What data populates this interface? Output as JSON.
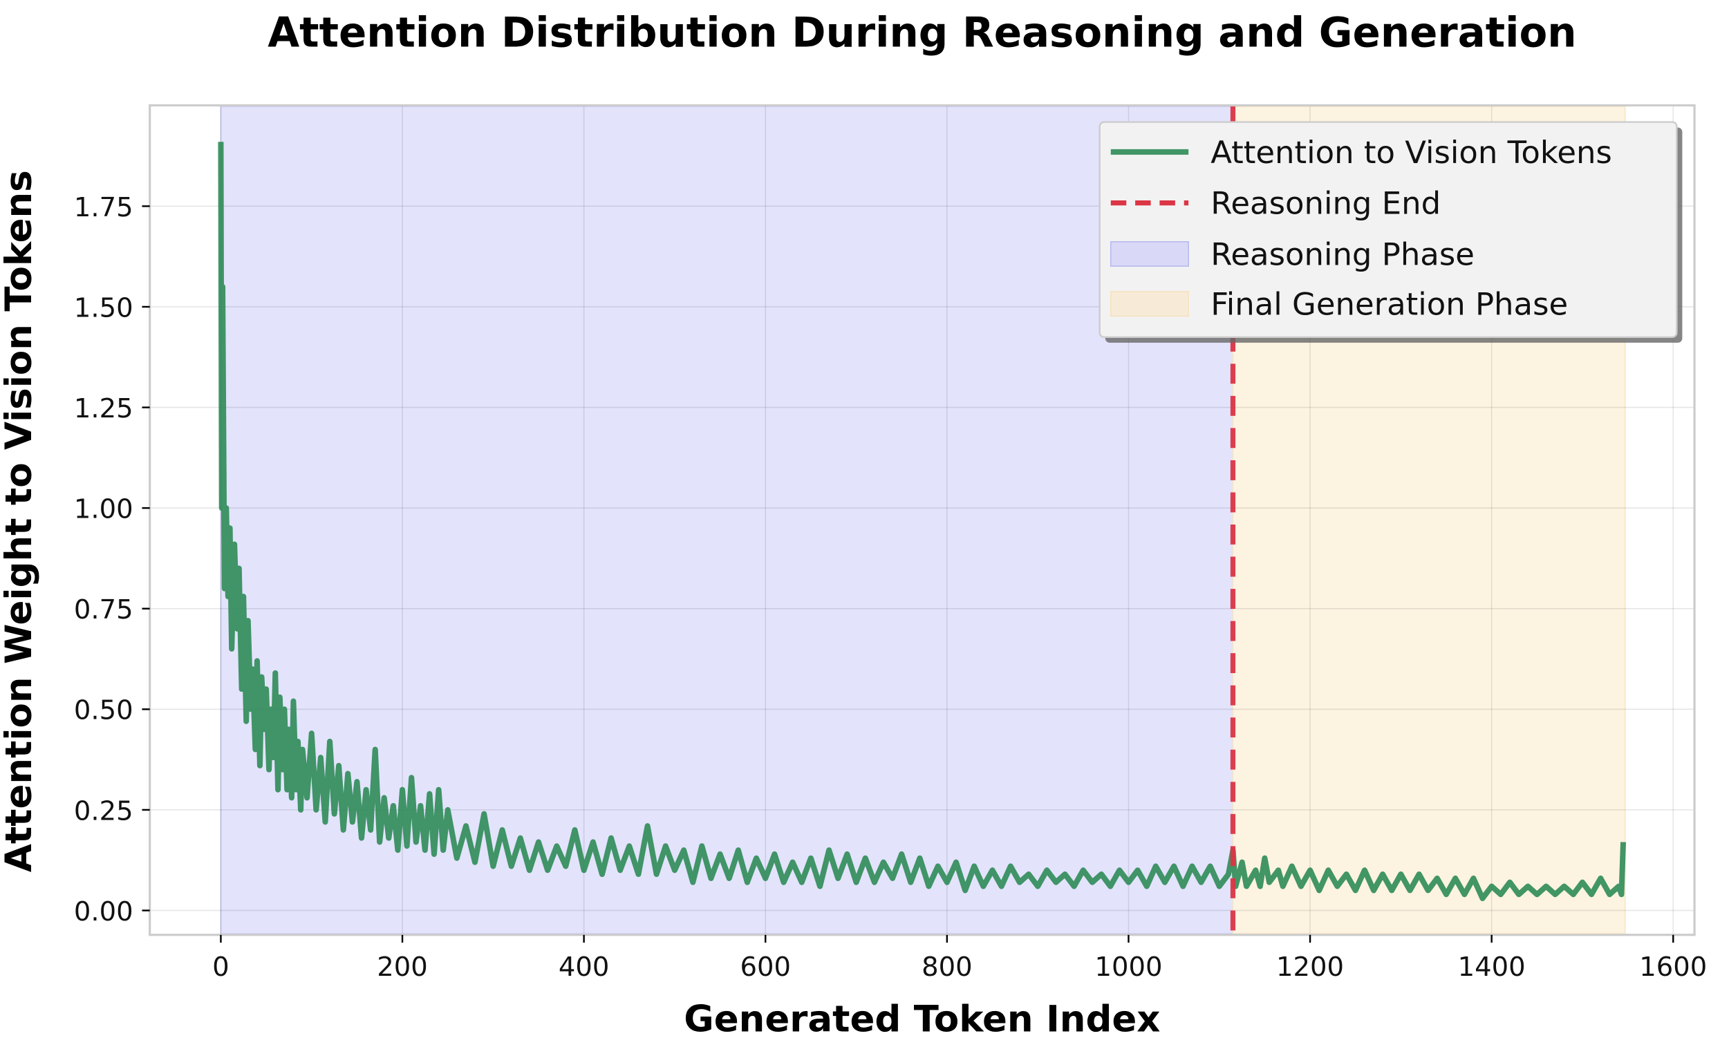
{
  "chart_data": {
    "type": "line",
    "title": "Attention Distribution During Reasoning and Generation",
    "xlabel": "Generated Token Index",
    "ylabel": "Attention Weight to Vision Tokens",
    "xlim": [
      -100,
      1620
    ],
    "ylim": [
      -0.06,
      2.0
    ],
    "xticks": [
      0,
      200,
      400,
      600,
      800,
      1000,
      1200,
      1400,
      1600
    ],
    "xtick_labels": [
      "0",
      "200",
      "400",
      "600",
      "800",
      "1000",
      "1200",
      "1400",
      "1600"
    ],
    "yticks": [
      0,
      0.25,
      0.5,
      0.75,
      1.0,
      1.25,
      1.5,
      1.75
    ],
    "ytick_labels": [
      "0.00",
      "0.25",
      "0.50",
      "0.75",
      "1.00",
      "1.25",
      "1.50",
      "1.75"
    ],
    "grid": true,
    "legend_position": "top-right",
    "legend": [
      "Attention to Vision Tokens",
      "Reasoning End",
      "Reasoning Phase",
      "Final Generation Phase"
    ],
    "colors": {
      "line": "#2e8b57",
      "reasoning_end": "#dc3545",
      "reasoning_phase": "#e3e3fc",
      "final_phase": "#fdf3e1"
    },
    "reasoning_end": 1115,
    "regions": [
      {
        "name": "Reasoning Phase",
        "start": 0,
        "end": 1115
      },
      {
        "name": "Final Generation Phase",
        "start": 1115,
        "end": 1547
      }
    ],
    "series": [
      {
        "name": "Attention to Vision Tokens",
        "x": [
          0,
          1,
          2,
          4,
          6,
          8,
          10,
          12,
          15,
          18,
          20,
          23,
          25,
          28,
          30,
          33,
          35,
          38,
          40,
          43,
          45,
          48,
          50,
          53,
          55,
          58,
          60,
          63,
          65,
          68,
          70,
          73,
          75,
          78,
          80,
          83,
          85,
          88,
          90,
          95,
          100,
          105,
          110,
          115,
          120,
          125,
          130,
          135,
          140,
          145,
          150,
          155,
          160,
          165,
          170,
          175,
          180,
          185,
          190,
          195,
          200,
          205,
          210,
          215,
          220,
          225,
          230,
          235,
          240,
          245,
          250,
          260,
          270,
          280,
          290,
          300,
          310,
          320,
          330,
          340,
          350,
          360,
          370,
          380,
          390,
          400,
          410,
          420,
          430,
          440,
          450,
          460,
          470,
          480,
          490,
          500,
          510,
          520,
          530,
          540,
          550,
          560,
          570,
          580,
          590,
          600,
          610,
          620,
          630,
          640,
          650,
          660,
          670,
          680,
          690,
          700,
          710,
          720,
          730,
          740,
          750,
          760,
          770,
          780,
          790,
          800,
          810,
          820,
          830,
          840,
          850,
          860,
          870,
          880,
          890,
          900,
          910,
          920,
          930,
          940,
          950,
          960,
          970,
          980,
          990,
          1000,
          1010,
          1020,
          1030,
          1040,
          1050,
          1060,
          1070,
          1080,
          1090,
          1100,
          1110,
          1115,
          1118,
          1125,
          1130,
          1140,
          1145,
          1150,
          1155,
          1165,
          1170,
          1180,
          1190,
          1200,
          1210,
          1220,
          1230,
          1240,
          1250,
          1260,
          1270,
          1280,
          1290,
          1300,
          1310,
          1320,
          1330,
          1340,
          1350,
          1360,
          1370,
          1380,
          1390,
          1400,
          1410,
          1420,
          1430,
          1440,
          1450,
          1460,
          1470,
          1480,
          1490,
          1500,
          1510,
          1520,
          1530,
          1540,
          1543,
          1545
        ],
        "y": [
          1.91,
          1.0,
          1.55,
          0.8,
          1.0,
          0.78,
          0.95,
          0.65,
          0.91,
          0.7,
          0.85,
          0.55,
          0.78,
          0.47,
          0.72,
          0.5,
          0.6,
          0.4,
          0.62,
          0.36,
          0.58,
          0.45,
          0.55,
          0.35,
          0.5,
          0.38,
          0.59,
          0.3,
          0.53,
          0.35,
          0.5,
          0.3,
          0.45,
          0.28,
          0.52,
          0.3,
          0.42,
          0.25,
          0.4,
          0.28,
          0.44,
          0.25,
          0.38,
          0.22,
          0.42,
          0.24,
          0.36,
          0.2,
          0.34,
          0.22,
          0.32,
          0.18,
          0.3,
          0.2,
          0.4,
          0.17,
          0.28,
          0.18,
          0.26,
          0.15,
          0.3,
          0.16,
          0.33,
          0.17,
          0.26,
          0.15,
          0.29,
          0.14,
          0.3,
          0.15,
          0.25,
          0.13,
          0.21,
          0.12,
          0.24,
          0.11,
          0.2,
          0.11,
          0.18,
          0.1,
          0.17,
          0.1,
          0.16,
          0.11,
          0.2,
          0.1,
          0.17,
          0.09,
          0.18,
          0.1,
          0.16,
          0.09,
          0.21,
          0.09,
          0.16,
          0.1,
          0.15,
          0.07,
          0.16,
          0.08,
          0.14,
          0.08,
          0.15,
          0.07,
          0.13,
          0.08,
          0.14,
          0.07,
          0.12,
          0.07,
          0.13,
          0.06,
          0.15,
          0.08,
          0.14,
          0.07,
          0.13,
          0.07,
          0.12,
          0.08,
          0.14,
          0.07,
          0.13,
          0.06,
          0.11,
          0.07,
          0.12,
          0.05,
          0.11,
          0.06,
          0.1,
          0.06,
          0.11,
          0.07,
          0.09,
          0.06,
          0.1,
          0.07,
          0.09,
          0.06,
          0.1,
          0.07,
          0.09,
          0.06,
          0.1,
          0.07,
          0.1,
          0.06,
          0.11,
          0.07,
          0.11,
          0.06,
          0.11,
          0.07,
          0.11,
          0.06,
          0.09,
          0.15,
          0.06,
          0.12,
          0.06,
          0.1,
          0.06,
          0.13,
          0.07,
          0.1,
          0.06,
          0.11,
          0.06,
          0.1,
          0.05,
          0.1,
          0.06,
          0.09,
          0.05,
          0.1,
          0.05,
          0.09,
          0.05,
          0.09,
          0.05,
          0.09,
          0.05,
          0.08,
          0.04,
          0.08,
          0.04,
          0.08,
          0.03,
          0.06,
          0.04,
          0.07,
          0.04,
          0.06,
          0.04,
          0.06,
          0.04,
          0.06,
          0.04,
          0.07,
          0.04,
          0.08,
          0.04,
          0.06,
          0.04,
          0.17
        ]
      }
    ]
  }
}
